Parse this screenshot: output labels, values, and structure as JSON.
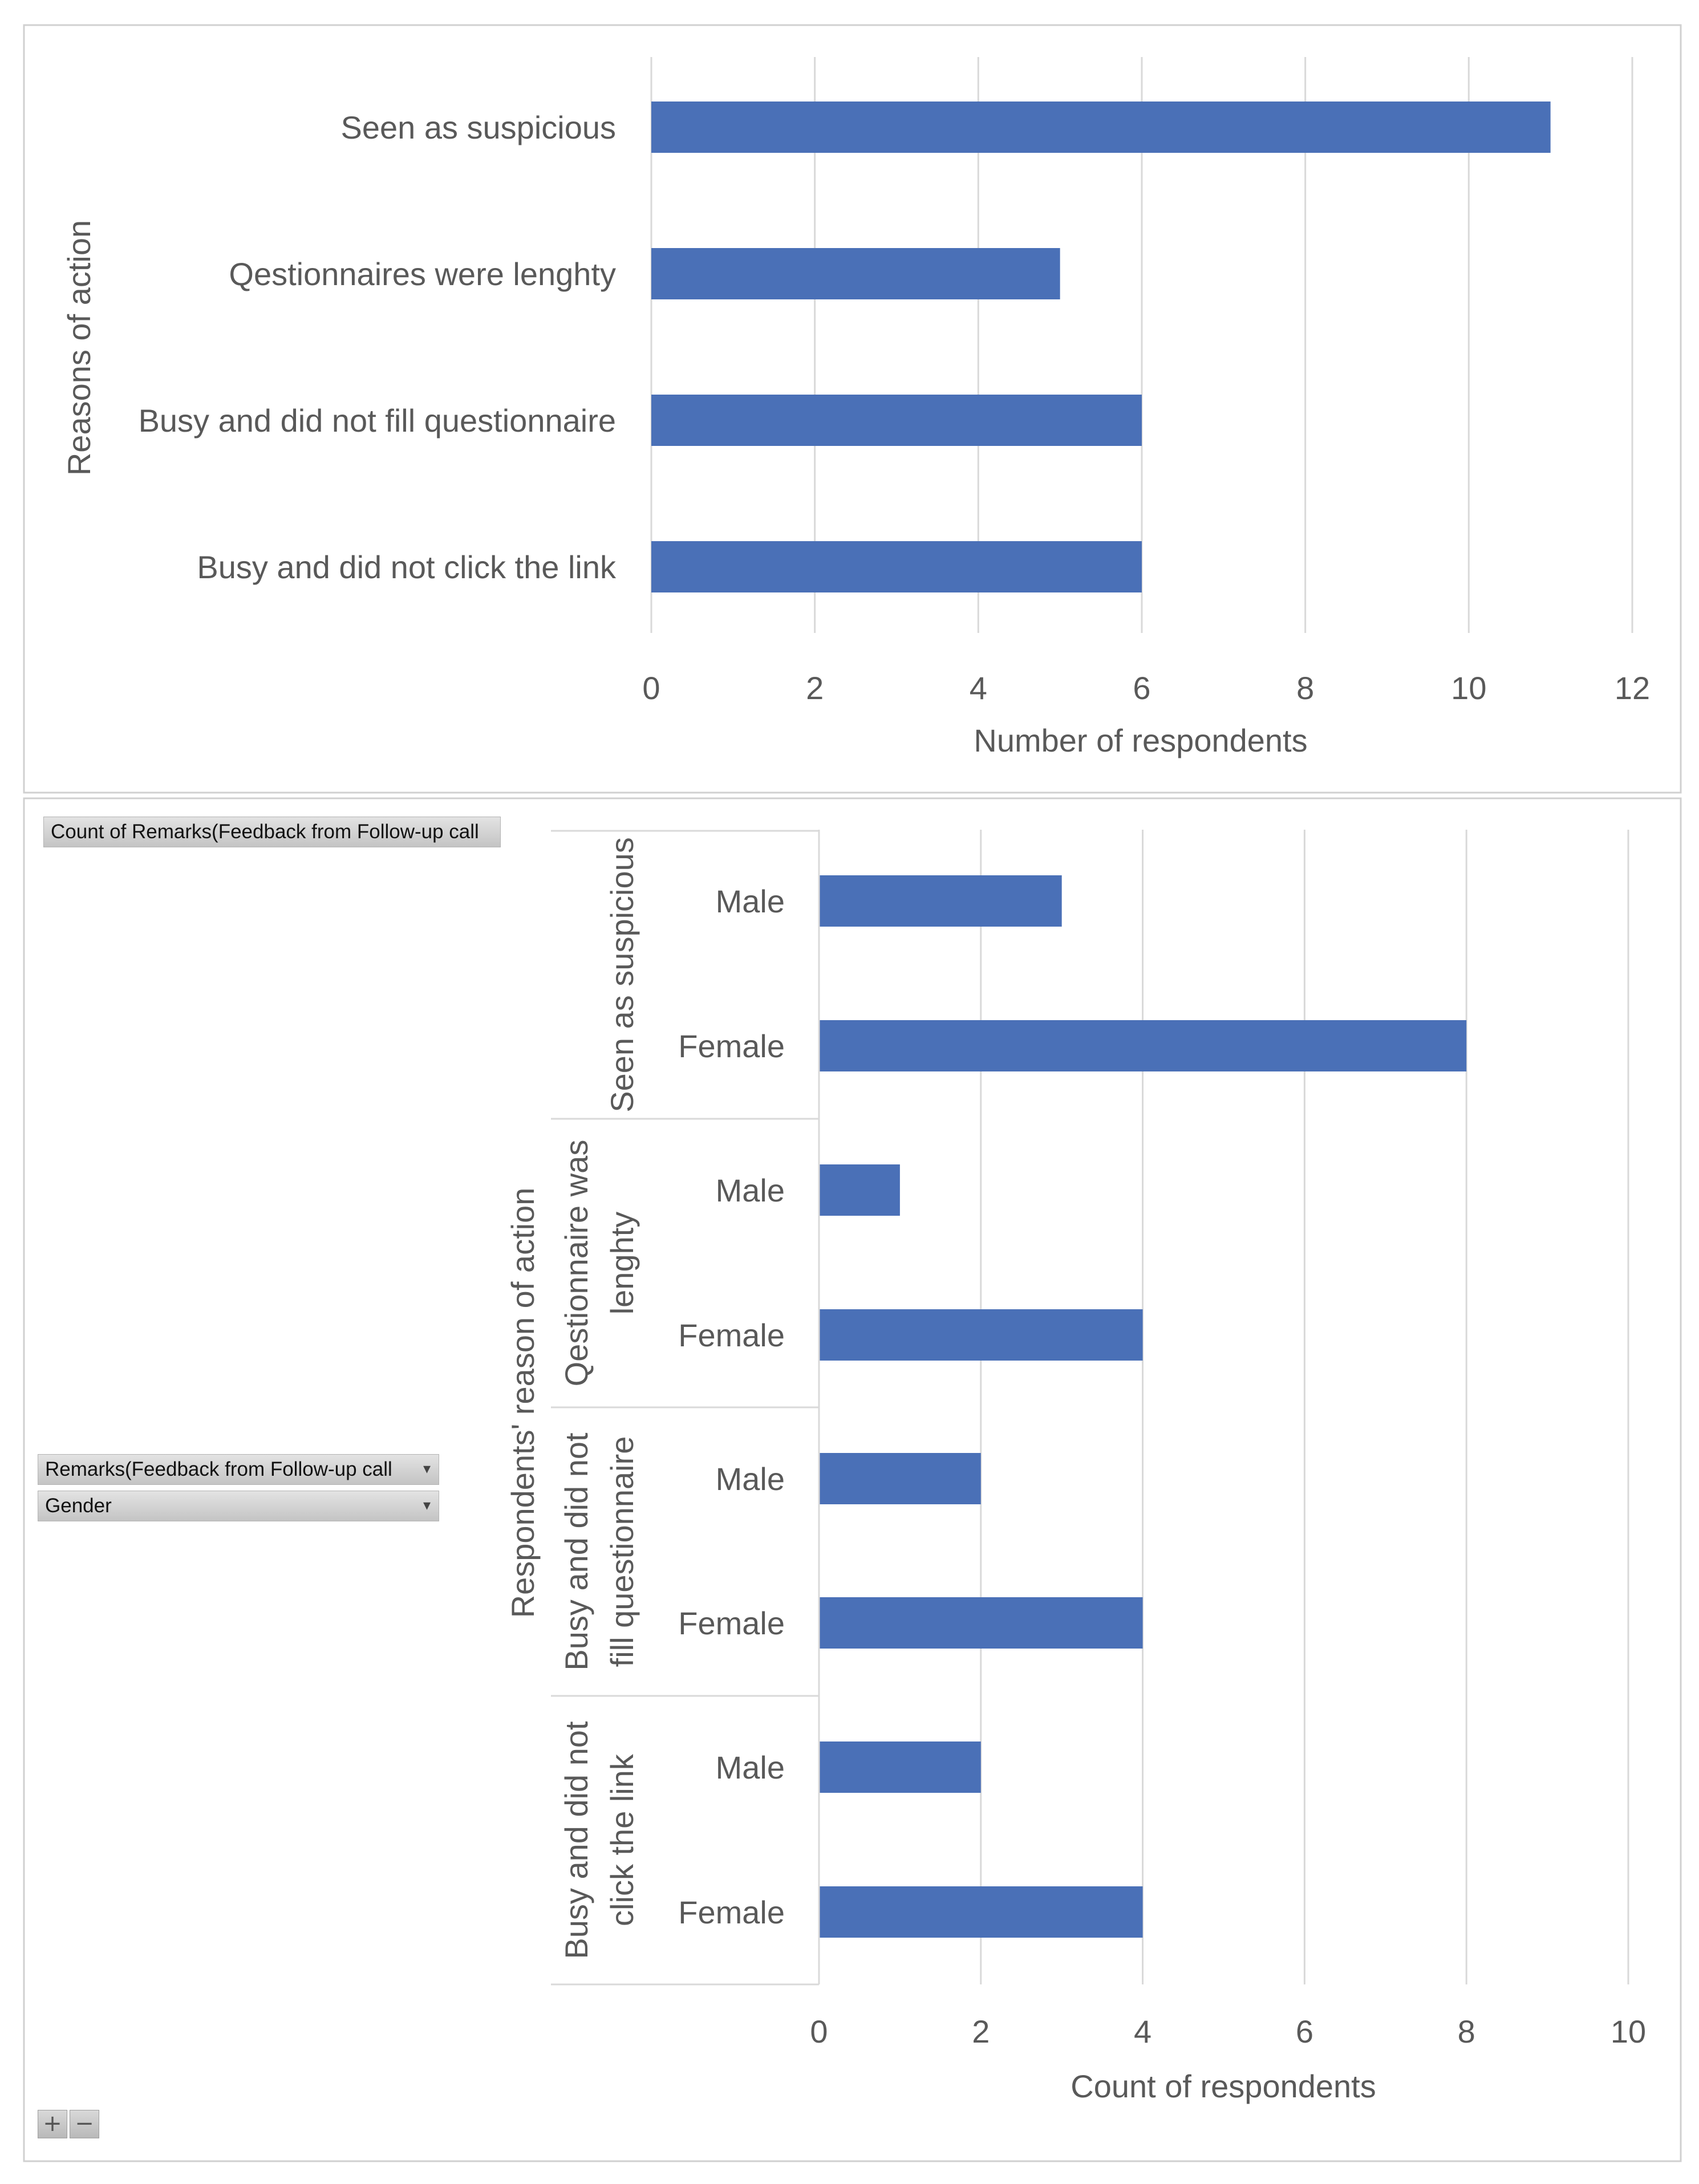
{
  "colors": {
    "bar": "#4a70b7",
    "grid": "#d9d9d9",
    "text": "#595959",
    "frame": "#d0d0d0"
  },
  "chart_data": [
    {
      "type": "bar",
      "orientation": "horizontal",
      "categories": [
        "Seen as suspicious",
        "Qestionnaires were lenghty",
        "Busy and did not fill questionnaire",
        "Busy and did not click the link"
      ],
      "values": [
        11,
        5,
        6,
        6
      ],
      "title": "",
      "xlabel": "Number of respondents",
      "ylabel": "Reasons of action",
      "xlim": [
        0,
        12
      ],
      "xticks": [
        "0",
        "2",
        "4",
        "6",
        "8",
        "10",
        "12"
      ],
      "grid": true
    },
    {
      "type": "bar",
      "orientation": "horizontal",
      "groups": [
        {
          "name": "Seen as suspicious",
          "name_lines": [
            "Seen as suspicious"
          ],
          "items": [
            {
              "label": "Male",
              "value": 3
            },
            {
              "label": "Female",
              "value": 8
            }
          ]
        },
        {
          "name": "Qestionnaire was lenghty",
          "name_lines": [
            "Qestionnaire was",
            "lenghty"
          ],
          "items": [
            {
              "label": "Male",
              "value": 1
            },
            {
              "label": "Female",
              "value": 4
            }
          ]
        },
        {
          "name": "Busy and did not fill questionnaire",
          "name_lines": [
            "Busy and did not",
            "fill questionnaire"
          ],
          "items": [
            {
              "label": "Male",
              "value": 2
            },
            {
              "label": "Female",
              "value": 4
            }
          ]
        },
        {
          "name": "Busy and did not click the link",
          "name_lines": [
            "Busy and did not",
            "click the link"
          ],
          "items": [
            {
              "label": "Male",
              "value": 2
            },
            {
              "label": "Female",
              "value": 4
            }
          ]
        }
      ],
      "title": "",
      "xlabel": "Count of respondents",
      "ylabel": "Respondents' reason of action",
      "xlim": [
        0,
        10
      ],
      "xticks": [
        "0",
        "2",
        "4",
        "6",
        "8",
        "10"
      ],
      "grid": true
    }
  ],
  "pivot": {
    "value_field": "Count of Remarks(Feedback from Follow-up call",
    "row_fields": [
      "Remarks(Feedback from Follow-up call",
      "Gender"
    ],
    "dropdown_glyph": "▾",
    "zoom_in": "+",
    "zoom_out": "−"
  }
}
